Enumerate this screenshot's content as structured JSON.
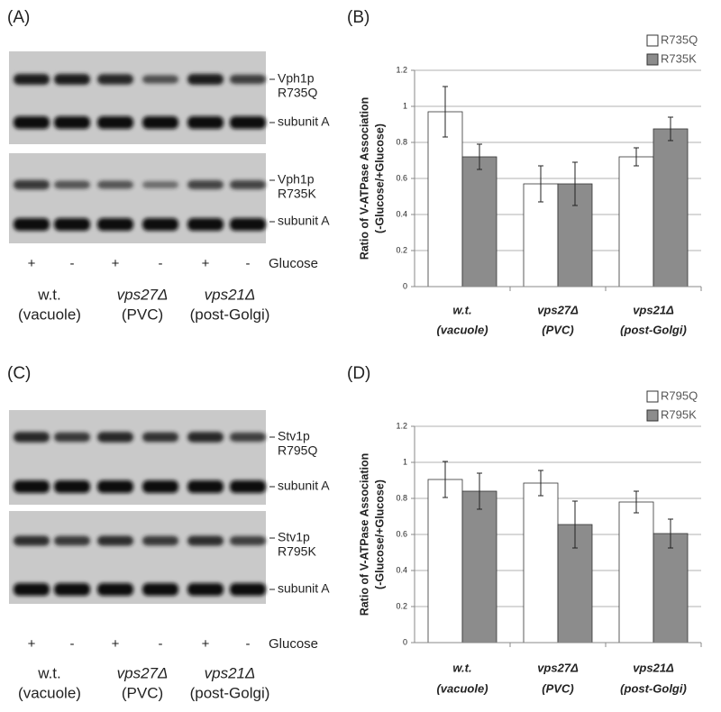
{
  "panels": [
    {
      "label": "(A)",
      "blots": [
        {
          "labels": [
            "Vph1p",
            "R735Q",
            "subunit A"
          ]
        },
        {
          "labels": [
            "Vph1p",
            "R735K",
            "subunit A"
          ]
        }
      ],
      "glucose": [
        "+",
        "-",
        "+",
        "-",
        "+",
        "-"
      ],
      "glucose_label": "Glucose",
      "strains": [
        [
          "w.t.",
          "(vacuole)"
        ],
        [
          "vps27Δ",
          "(PVC)"
        ],
        [
          "vps21Δ",
          "(post-Golgi)"
        ]
      ]
    },
    {
      "label": "(C)",
      "blots": [
        {
          "labels": [
            "Stv1p",
            "R795Q",
            "subunit A"
          ]
        },
        {
          "labels": [
            "Stv1p",
            "R795K",
            "subunit A"
          ]
        }
      ],
      "glucose": [
        "+",
        "-",
        "+",
        "-",
        "+",
        "-"
      ],
      "glucose_label": "Glucose",
      "strains": [
        [
          "w.t.",
          "(vacuole)"
        ],
        [
          "vps27Δ",
          "(PVC)"
        ],
        [
          "vps21Δ",
          "(post-Golgi)"
        ]
      ]
    }
  ],
  "chart_data": [
    {
      "type": "bar",
      "panel_label": "(B)",
      "ylabel": [
        "Ratio of V-ATPase Association",
        "(-Glucose/+Glucose)"
      ],
      "categories": [
        [
          "w.t.",
          "(vacuole)"
        ],
        [
          "vps27Δ",
          "(PVC)"
        ],
        [
          "vps21Δ",
          "(post-Golgi)"
        ]
      ],
      "series": [
        {
          "name": "R735Q",
          "color": "#ffffff",
          "values": [
            0.97,
            0.57,
            0.72
          ],
          "errors": [
            0.14,
            0.1,
            0.05
          ]
        },
        {
          "name": "R735K",
          "color": "#8c8c8c",
          "values": [
            0.72,
            0.57,
            0.875
          ],
          "errors": [
            0.07,
            0.12,
            0.065
          ]
        }
      ],
      "ylim": [
        0,
        1.2
      ],
      "yticks": [
        0,
        0.2,
        0.4,
        0.6,
        0.8,
        1,
        1.2
      ],
      "grid": true,
      "legend": "top-right"
    },
    {
      "type": "bar",
      "panel_label": "(D)",
      "ylabel": [
        "Ratio of V-ATPase Association",
        "(-Glucose/+Glucose)"
      ],
      "categories": [
        [
          "w.t.",
          "(vacuole)"
        ],
        [
          "vps27Δ",
          "(PVC)"
        ],
        [
          "vps21Δ",
          "(post-Golgi)"
        ]
      ],
      "series": [
        {
          "name": "R795Q",
          "color": "#ffffff",
          "values": [
            0.905,
            0.885,
            0.78
          ],
          "errors": [
            0.1,
            0.07,
            0.06
          ]
        },
        {
          "name": "R795K",
          "color": "#8c8c8c",
          "values": [
            0.84,
            0.655,
            0.605
          ],
          "errors": [
            0.1,
            0.13,
            0.08
          ]
        }
      ],
      "ylim": [
        0,
        1.2
      ],
      "yticks": [
        0,
        0.2,
        0.4,
        0.6,
        0.8,
        1,
        1.2
      ],
      "grid": true,
      "legend": "top-right"
    }
  ]
}
